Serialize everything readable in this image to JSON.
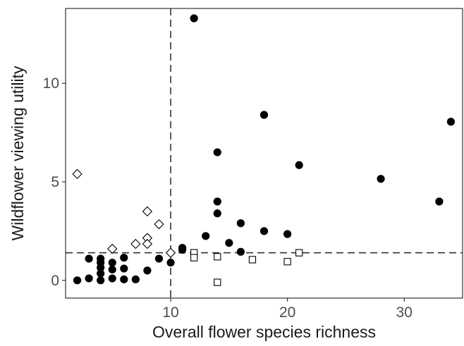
{
  "chart_data": {
    "type": "scatter",
    "title": "",
    "xlabel": "Overall flower species richness",
    "ylabel": "Wildflower viewing utility",
    "xlim": [
      1,
      35
    ],
    "ylim": [
      -0.9,
      13.8
    ],
    "xticks": [
      10,
      20,
      30
    ],
    "yticks": [
      0,
      5,
      10
    ],
    "x_tick_labels": [
      "10",
      "20",
      "30"
    ],
    "y_tick_labels": [
      "0",
      "5",
      "10"
    ],
    "grid": false,
    "legend": "none",
    "reference_lines": [
      {
        "orientation": "vertical",
        "axis": "x",
        "value": 10,
        "style": "dashed"
      },
      {
        "orientation": "horizontal",
        "axis": "y",
        "value": 1.4,
        "style": "dashed"
      }
    ],
    "series": [
      {
        "marker": "filled-circle",
        "color": "#000000",
        "points": [
          {
            "x": 2,
            "y": 0.0
          },
          {
            "x": 3,
            "y": 0.1
          },
          {
            "x": 3,
            "y": 1.1
          },
          {
            "x": 4,
            "y": 0.0
          },
          {
            "x": 4,
            "y": 0.35
          },
          {
            "x": 4,
            "y": 0.65
          },
          {
            "x": 4,
            "y": 0.9
          },
          {
            "x": 4,
            "y": 1.1
          },
          {
            "x": 5,
            "y": 0.1
          },
          {
            "x": 5,
            "y": 0.55
          },
          {
            "x": 5,
            "y": 0.9
          },
          {
            "x": 6,
            "y": 0.05
          },
          {
            "x": 6,
            "y": 0.6
          },
          {
            "x": 6,
            "y": 1.15
          },
          {
            "x": 7,
            "y": 0.05
          },
          {
            "x": 8,
            "y": 0.5
          },
          {
            "x": 9,
            "y": 1.1
          },
          {
            "x": 10,
            "y": 0.9
          },
          {
            "x": 11,
            "y": 1.55
          },
          {
            "x": 11,
            "y": 1.65
          },
          {
            "x": 12,
            "y": 13.3
          },
          {
            "x": 13,
            "y": 2.25
          },
          {
            "x": 14,
            "y": 6.5
          },
          {
            "x": 14,
            "y": 4.0
          },
          {
            "x": 14,
            "y": 3.4
          },
          {
            "x": 15,
            "y": 1.9
          },
          {
            "x": 16,
            "y": 2.9
          },
          {
            "x": 16,
            "y": 1.45
          },
          {
            "x": 18,
            "y": 8.4
          },
          {
            "x": 18,
            "y": 2.5
          },
          {
            "x": 20,
            "y": 2.35
          },
          {
            "x": 21,
            "y": 5.85
          },
          {
            "x": 28,
            "y": 5.15
          },
          {
            "x": 33,
            "y": 4.0
          },
          {
            "x": 34,
            "y": 8.05
          }
        ]
      },
      {
        "marker": "open-diamond",
        "color": "#000000",
        "points": [
          {
            "x": 2,
            "y": 5.4
          },
          {
            "x": 5,
            "y": 1.6
          },
          {
            "x": 7,
            "y": 1.85
          },
          {
            "x": 8,
            "y": 3.5
          },
          {
            "x": 8,
            "y": 2.15
          },
          {
            "x": 8,
            "y": 1.85
          },
          {
            "x": 9,
            "y": 2.85
          },
          {
            "x": 10,
            "y": 1.4
          }
        ]
      },
      {
        "marker": "open-square",
        "color": "#000000",
        "points": [
          {
            "x": 12,
            "y": 1.4
          },
          {
            "x": 12,
            "y": 1.15
          },
          {
            "x": 14,
            "y": 1.2
          },
          {
            "x": 14,
            "y": -0.1
          },
          {
            "x": 17,
            "y": 1.05
          },
          {
            "x": 20,
            "y": 0.95
          },
          {
            "x": 21,
            "y": 1.4
          }
        ]
      }
    ]
  }
}
